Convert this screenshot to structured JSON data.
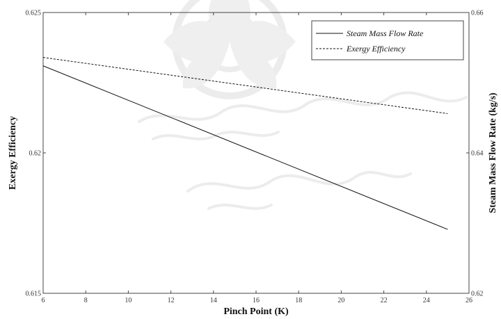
{
  "chart_data": {
    "type": "line",
    "xlabel": "Pinch Point (K)",
    "ylabel_left": "Exergy Efficiency",
    "ylabel_right": "Steam Mass Flow Rate (kg/s)",
    "x_range": [
      6,
      26
    ],
    "x_ticks": [
      "6",
      "8",
      "10",
      "12",
      "14",
      "16",
      "18",
      "20",
      "22",
      "24",
      "26"
    ],
    "y_left_range": [
      0.615,
      0.625
    ],
    "y_left_ticks": [
      "0.615",
      "0.62",
      "0.625"
    ],
    "y_right_range": [
      0.62,
      0.66
    ],
    "y_right_ticks": [
      "0.62",
      "0.64",
      "0.66"
    ],
    "grid": false,
    "legend_position": "top-right",
    "series": [
      {
        "name": "Steam Mass Flow Rate",
        "axis": "right",
        "style": "solid",
        "x": [
          6,
          25
        ],
        "y": [
          0.6524,
          0.6291
        ]
      },
      {
        "name": "Exergy Efficiency",
        "axis": "left",
        "style": "dashed",
        "x": [
          6,
          25
        ],
        "y": [
          0.6234,
          0.6214
        ]
      }
    ],
    "colors": {
      "line": "#111111",
      "axis": "#444444",
      "watermark": "#9a9a9a"
    }
  }
}
